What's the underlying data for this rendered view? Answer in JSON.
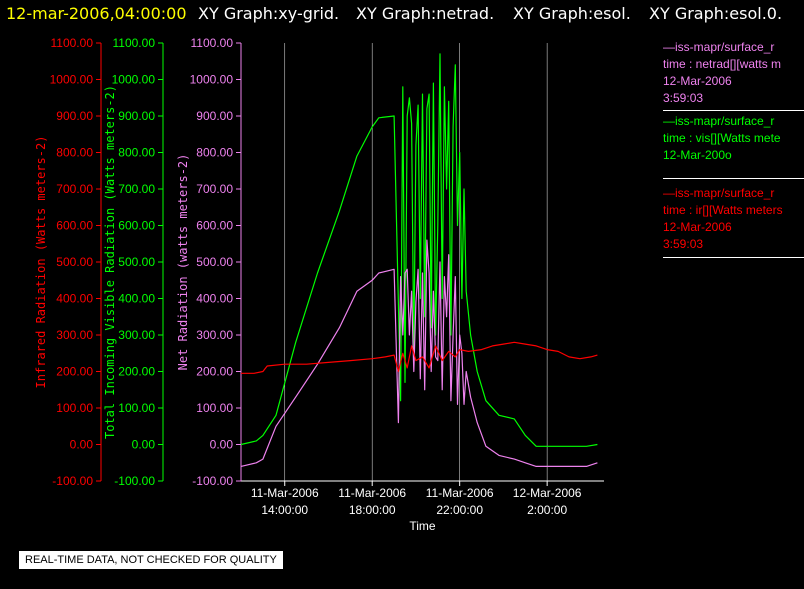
{
  "header": {
    "date": "12-mar-2006,04:00:00",
    "graphs": [
      "XY Graph:xy-grid.",
      "XY Graph:netrad.",
      "XY Graph:esol.",
      "XY Graph:esol.0."
    ]
  },
  "colors": {
    "background": "#000000",
    "title_date": "#ffff00",
    "infrared": "#ff0000",
    "visible": "#00ff00",
    "net": "#ee82ee",
    "grid": "#ffffff"
  },
  "legend": [
    {
      "line1": "—iss-mapr/surface_r",
      "line2": "time : netrad[][watts m",
      "line3": "12-Mar-2006",
      "line4": "3:59:03",
      "color": "#ee82ee"
    },
    {
      "line1": "—iss-mapr/surface_r",
      "line2": "time : vis[][Watts mete",
      "line3": "12-Mar-200o",
      "line4": "",
      "color": "#00ff00"
    },
    {
      "line1": "—iss-mapr/surface_r",
      "line2": "time : ir[][Watts meters",
      "line3": "12-Mar-2006",
      "line4": "3:59:03",
      "color": "#ff0000"
    }
  ],
  "disclaimer": "REAL-TIME DATA, NOT CHECKED FOR QUALITY",
  "chart_data": {
    "type": "line",
    "xlabel": "Time",
    "x_unit": "hours since 11-Mar-2006 00:00 (axis prints dates/times)",
    "xlim": [
      12.0,
      28.6
    ],
    "x_ticks": [
      {
        "x": 14,
        "line1": "11-Mar-2006",
        "line2": "14:00:00"
      },
      {
        "x": 18,
        "line1": "11-Mar-2006",
        "line2": "18:00:00"
      },
      {
        "x": 22,
        "line1": "11-Mar-2006",
        "line2": "22:00:00"
      },
      {
        "x": 26,
        "line1": "12-Mar-2006",
        "line2": "2:00:00"
      }
    ],
    "ylim": [
      -100,
      1100
    ],
    "y_ticks": [
      "-100.00",
      "0.00",
      "100.00",
      "200.00",
      "300.00",
      "400.00",
      "500.00",
      "600.00",
      "700.00",
      "800.00",
      "900.00",
      "1000.00",
      "1100.00"
    ],
    "y_tick_values": [
      -100,
      0,
      100,
      200,
      300,
      400,
      500,
      600,
      700,
      800,
      900,
      1000,
      1100
    ],
    "axes": [
      {
        "key": "infrared",
        "label": "Infrared Radiation (Watts meters-2)",
        "color": "#ff0000"
      },
      {
        "key": "visible",
        "label": "Total Incoming Visible Radiation (Watts meters-2)",
        "color": "#00ff00"
      },
      {
        "key": "net",
        "label": "Net Radiation (watts meters-2)",
        "color": "#ee82ee"
      }
    ],
    "grid": true,
    "legend_position": "right",
    "series": [
      {
        "name": "vis",
        "color": "#00ff00",
        "x": [
          12.0,
          12.7,
          13.0,
          13.6,
          14.5,
          15.5,
          16.5,
          17.3,
          18.0,
          18.3,
          19.0,
          19.3,
          19.4,
          19.5,
          19.6,
          19.7,
          19.8,
          19.9,
          20.0,
          20.1,
          20.2,
          20.3,
          20.4,
          20.5,
          20.6,
          20.7,
          20.8,
          20.9,
          21.0,
          21.1,
          21.2,
          21.3,
          21.4,
          21.5,
          21.6,
          21.7,
          21.8,
          21.9,
          22.0,
          22.1,
          22.2,
          22.3,
          22.5,
          22.8,
          23.2,
          23.8,
          24.5,
          25.0,
          25.5,
          26.0,
          26.6,
          27.3,
          27.8,
          28.3
        ],
        "y": [
          0,
          10,
          25,
          80,
          280,
          470,
          640,
          790,
          870,
          895,
          900,
          120,
          980,
          170,
          900,
          950,
          880,
          250,
          820,
          930,
          400,
          960,
          350,
          920,
          960,
          320,
          990,
          300,
          600,
          1070,
          400,
          980,
          700,
          940,
          300,
          870,
          1040,
          600,
          800,
          400,
          700,
          420,
          300,
          200,
          120,
          80,
          70,
          25,
          -5,
          -5,
          -5,
          -5,
          -5,
          0
        ]
      },
      {
        "name": "netrad",
        "color": "#ee82ee",
        "x": [
          12.0,
          12.7,
          13.0,
          13.6,
          14.5,
          15.5,
          16.5,
          17.3,
          18.0,
          18.3,
          19.0,
          19.2,
          19.3,
          19.4,
          19.5,
          19.6,
          19.7,
          19.8,
          19.9,
          20.0,
          20.1,
          20.2,
          20.3,
          20.4,
          20.5,
          20.6,
          20.7,
          20.8,
          20.9,
          21.0,
          21.1,
          21.2,
          21.3,
          21.4,
          21.5,
          21.6,
          21.7,
          21.8,
          21.9,
          22.0,
          22.1,
          22.2,
          22.3,
          22.5,
          22.8,
          23.2,
          23.8,
          24.5,
          25.0,
          25.5,
          26.0,
          26.6,
          27.3,
          27.8,
          28.3
        ],
        "y": [
          -60,
          -50,
          -40,
          50,
          130,
          220,
          320,
          420,
          450,
          470,
          480,
          60,
          460,
          300,
          470,
          480,
          300,
          420,
          200,
          390,
          480,
          180,
          470,
          150,
          560,
          470,
          200,
          420,
          240,
          230,
          500,
          150,
          460,
          350,
          520,
          120,
          300,
          460,
          110,
          300,
          250,
          110,
          200,
          130,
          60,
          -5,
          -30,
          -40,
          -50,
          -60,
          -60,
          -60,
          -60,
          -60,
          -50
        ]
      },
      {
        "name": "ir",
        "color": "#ff0000",
        "x": [
          12.0,
          12.6,
          13.0,
          13.2,
          14.0,
          15.0,
          16.0,
          17.0,
          18.0,
          18.6,
          19.0,
          19.2,
          19.4,
          19.6,
          19.8,
          20.0,
          20.3,
          20.6,
          20.9,
          21.2,
          21.5,
          21.8,
          22.0,
          22.4,
          23.0,
          23.5,
          24.0,
          24.5,
          25.0,
          25.5,
          26.0,
          26.5,
          27.0,
          27.5,
          28.0,
          28.3
        ],
        "y": [
          195,
          195,
          200,
          215,
          220,
          220,
          225,
          230,
          235,
          240,
          245,
          200,
          250,
          210,
          270,
          230,
          240,
          210,
          270,
          230,
          255,
          240,
          260,
          255,
          260,
          270,
          275,
          280,
          275,
          270,
          260,
          255,
          240,
          235,
          240,
          245
        ]
      }
    ]
  }
}
